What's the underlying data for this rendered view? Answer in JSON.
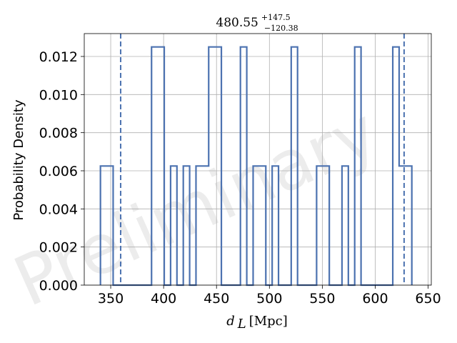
{
  "chart_data": {
    "type": "histogram",
    "title": {
      "main": "480.55",
      "sup": "+147.5",
      "sub": "−120.38"
    },
    "xlabel": {
      "var": "d",
      "sub": "L",
      "unit": "[Mpc]"
    },
    "ylabel": "Probability Density",
    "xlim": [
      325,
      653
    ],
    "ylim": [
      0,
      0.0132
    ],
    "xticks": [
      350,
      400,
      450,
      500,
      550,
      600,
      650
    ],
    "yticks": [
      0.0,
      0.002,
      0.004,
      0.006,
      0.008,
      0.01,
      0.012
    ],
    "ytick_labels": [
      "0.000",
      "0.002",
      "0.004",
      "0.006",
      "0.008",
      "0.010",
      "0.012"
    ],
    "grid": true,
    "color": "#4c72b0",
    "bin_edges": [
      340.3,
      352.3,
      364.3,
      376.3,
      382.6,
      388.6,
      400.6,
      406.6,
      412.6,
      418.6,
      424.6,
      430.6,
      442.6,
      448.6,
      454.6,
      460.6,
      466.6,
      472.6,
      478.6,
      484.6,
      490.6,
      496.6,
      502.6,
      508.6,
      514.6,
      520.6,
      526.6,
      532.6,
      538.6,
      544.6,
      550.6,
      556.6,
      562.6,
      568.6,
      574.6,
      580.6,
      586.6,
      592.6,
      598.6,
      604.6,
      610.6,
      616.6,
      622.6,
      628.6,
      634.6
    ],
    "values": [
      0.00625,
      0,
      0,
      0,
      0,
      0.0125,
      0,
      0.00625,
      0,
      0.00625,
      0,
      0.00625,
      0.0125,
      0.0125,
      0,
      0,
      0,
      0.0125,
      0,
      0.00625,
      0.00625,
      0,
      0.00625,
      0,
      0,
      0.0125,
      0,
      0,
      0,
      0.00625,
      0.00625,
      0,
      0,
      0.00625,
      0,
      0.0125,
      0,
      0,
      0,
      0,
      0,
      0.0125,
      0.00625,
      0.00625
    ],
    "vlines": [
      359.4,
      627.3
    ],
    "watermark": "Preliminary"
  }
}
